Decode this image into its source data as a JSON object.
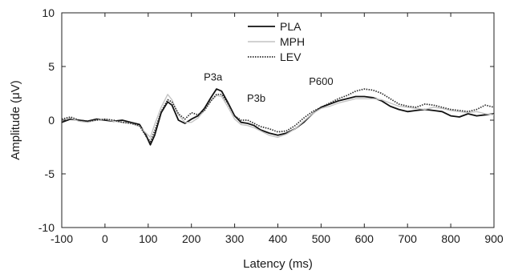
{
  "chart_data": {
    "type": "line",
    "title": "",
    "xlabel": "Latency (ms)",
    "ylabel": "Amplitude (μV)",
    "xlim": [
      -100,
      900
    ],
    "ylim": [
      -10,
      10
    ],
    "xticks": [
      -100,
      0,
      100,
      200,
      300,
      400,
      500,
      600,
      700,
      800,
      900
    ],
    "yticks": [
      -10,
      -5,
      0,
      5,
      10
    ],
    "grid": false,
    "legend_position": "top-center",
    "annotations": [
      {
        "text": "P3a",
        "x": 250,
        "y": 3.7
      },
      {
        "text": "P3b",
        "x": 350,
        "y": 1.7
      },
      {
        "text": "P600",
        "x": 500,
        "y": 3.3
      }
    ],
    "series": [
      {
        "name": "PLA",
        "color": "#111111",
        "style": "solid",
        "x": [
          -100,
          -80,
          -60,
          -40,
          -20,
          0,
          20,
          40,
          60,
          80,
          95,
          105,
          115,
          130,
          145,
          155,
          170,
          185,
          200,
          215,
          230,
          245,
          258,
          270,
          285,
          300,
          315,
          330,
          345,
          360,
          380,
          400,
          420,
          440,
          460,
          480,
          500,
          520,
          540,
          560,
          580,
          600,
          620,
          640,
          660,
          680,
          700,
          720,
          740,
          760,
          780,
          800,
          820,
          840,
          860,
          880,
          900
        ],
        "values": [
          -0.2,
          0.1,
          0,
          -0.1,
          0.1,
          0,
          -0.1,
          0,
          -0.2,
          -0.4,
          -1.4,
          -2.3,
          -1.4,
          0.7,
          1.7,
          1.4,
          0,
          -0.3,
          0.1,
          0.4,
          1.1,
          2.1,
          2.9,
          2.7,
          1.6,
          0.4,
          -0.2,
          -0.3,
          -0.5,
          -0.9,
          -1.2,
          -1.4,
          -1.2,
          -0.8,
          -0.2,
          0.6,
          1.2,
          1.5,
          1.8,
          2.0,
          2.2,
          2.2,
          2.1,
          1.8,
          1.3,
          1.0,
          0.8,
          0.9,
          1.0,
          0.9,
          0.8,
          0.4,
          0.3,
          0.6,
          0.4,
          0.5,
          0.6
        ]
      },
      {
        "name": "MPH",
        "color": "#c4c4c4",
        "style": "solid",
        "x": [
          -100,
          -80,
          -60,
          -40,
          -20,
          0,
          20,
          40,
          60,
          80,
          95,
          105,
          115,
          130,
          145,
          155,
          170,
          185,
          200,
          215,
          230,
          245,
          258,
          270,
          285,
          300,
          315,
          330,
          345,
          360,
          380,
          400,
          420,
          440,
          460,
          480,
          500,
          520,
          540,
          560,
          580,
          600,
          620,
          640,
          660,
          680,
          700,
          720,
          740,
          760,
          780,
          800,
          820,
          840,
          860,
          880,
          900
        ],
        "values": [
          0,
          0.2,
          -0.1,
          -0.2,
          0,
          0.1,
          -0.1,
          -0.2,
          -0.3,
          -0.6,
          -1.2,
          -1.6,
          -0.4,
          1.2,
          2.4,
          1.9,
          0.5,
          -0.2,
          -0.2,
          0.2,
          0.9,
          1.8,
          2.3,
          2.2,
          1.2,
          0.1,
          -0.4,
          -0.5,
          -0.7,
          -1.0,
          -1.4,
          -1.6,
          -1.3,
          -0.8,
          -0.1,
          0.6,
          1.1,
          1.3,
          1.6,
          1.8,
          2.0,
          2.0,
          2.0,
          1.9,
          1.6,
          1.3,
          1.2,
          1.1,
          1.0,
          1.2,
          1.1,
          0.9,
          0.8,
          0.7,
          0.8,
          0.6,
          0.5
        ]
      },
      {
        "name": "LEV",
        "color": "#2a2a2a",
        "style": "dotted",
        "x": [
          -100,
          -80,
          -60,
          -40,
          -20,
          0,
          20,
          40,
          60,
          80,
          95,
          105,
          115,
          130,
          145,
          155,
          170,
          185,
          200,
          215,
          230,
          245,
          258,
          270,
          285,
          300,
          315,
          330,
          345,
          360,
          380,
          400,
          420,
          440,
          460,
          480,
          500,
          520,
          540,
          560,
          580,
          600,
          620,
          640,
          660,
          680,
          700,
          720,
          740,
          760,
          780,
          800,
          820,
          840,
          860,
          880,
          900
        ],
        "values": [
          0.1,
          0.3,
          0,
          -0.1,
          0,
          0.1,
          0,
          -0.2,
          -0.3,
          -0.5,
          -1.5,
          -2.0,
          -1.0,
          0.8,
          1.9,
          1.7,
          0.6,
          0.1,
          0.7,
          0.5,
          0.9,
          1.8,
          2.4,
          2.4,
          1.5,
          0.4,
          0,
          0,
          -0.3,
          -0.6,
          -0.8,
          -1.1,
          -1.0,
          -0.5,
          0.2,
          0.8,
          1.2,
          1.6,
          2.0,
          2.3,
          2.7,
          2.9,
          2.8,
          2.5,
          2.0,
          1.5,
          1.3,
          1.2,
          1.5,
          1.4,
          1.2,
          1.0,
          0.9,
          0.8,
          1.0,
          1.4,
          1.2
        ]
      }
    ]
  }
}
